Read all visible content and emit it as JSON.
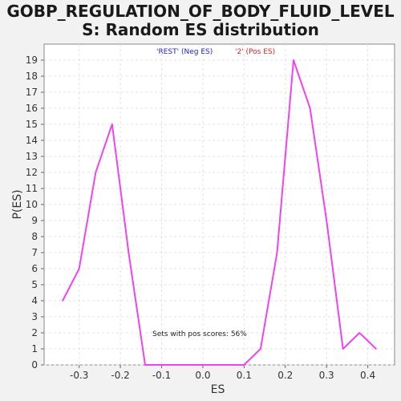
{
  "title_line1": "GOBP_REGULATION_OF_BODY_FLUID_LEVEL",
  "title_line2": "S: Random ES distribution",
  "chart_data": {
    "type": "line",
    "xlabel": "ES",
    "ylabel": "P(ES)",
    "xlim": [
      -0.385,
      0.465
    ],
    "ylim": [
      0,
      20
    ],
    "xticks": [
      "-0.3",
      "-0.2",
      "-0.1",
      "0.0",
      "0.1",
      "0.2",
      "0.3",
      "0.4"
    ],
    "xtick_values": [
      -0.3,
      -0.2,
      -0.1,
      0.0,
      0.1,
      0.2,
      0.3,
      0.4
    ],
    "yticks": [
      0,
      1,
      2,
      3,
      4,
      5,
      6,
      7,
      8,
      9,
      10,
      11,
      12,
      13,
      14,
      15,
      16,
      17,
      18,
      19
    ],
    "grid": true,
    "legend": [
      {
        "label": "'REST' (Neg ES)",
        "color": "#2222cc"
      },
      {
        "label": "'2' (Pos ES)",
        "color": "#dd2222"
      }
    ],
    "annotation": "Sets with pos scores: 56%",
    "series": [
      {
        "color": "#ee44ee",
        "x": [
          -0.34,
          -0.3,
          -0.26,
          -0.22,
          -0.18,
          -0.14,
          -0.1,
          -0.06,
          -0.02,
          0.02,
          0.06,
          0.1,
          0.14,
          0.18,
          0.22,
          0.26,
          0.3,
          0.34,
          0.38,
          0.42
        ],
        "y": [
          4,
          6,
          12,
          15,
          7,
          0,
          0,
          0,
          0,
          0,
          0,
          0,
          1,
          7,
          19,
          16,
          9,
          1,
          2,
          1
        ]
      }
    ]
  }
}
